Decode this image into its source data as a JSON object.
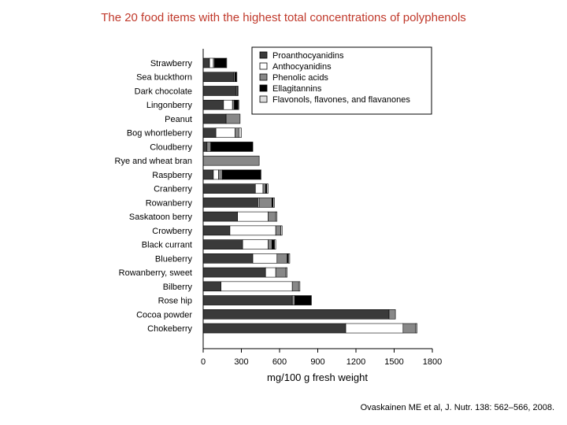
{
  "slide": {
    "title": "The 20 food items with the highest total concentrations of polyphenols",
    "citation": "Ovaskainen ME et al,  J. Nutr. 138: 562–566, 2008."
  },
  "chart_data": {
    "type": "bar",
    "orientation": "horizontal",
    "stacked": true,
    "title": "",
    "xlabel": "mg/100 g fresh weight",
    "ylabel": "",
    "xlim": [
      0,
      1800
    ],
    "xticks": [
      0,
      300,
      600,
      900,
      1200,
      1500,
      1800
    ],
    "grid": false,
    "legend_position": "top-right",
    "categories": [
      "Strawberry",
      "Sea buckthorn",
      "Dark chocolate",
      "Lingonberry",
      "Peanut",
      "Bog whortleberry",
      "Cloudberry",
      "Rye and wheat bran",
      "Raspberry",
      "Cranberry",
      "Rowanberry",
      "Saskatoon berry",
      "Crowberry",
      "Black currant",
      "Blueberry",
      "Rowanberry, sweet",
      "Bilberry",
      "Rose hip",
      "Cocoa powder",
      "Chokeberry"
    ],
    "series": [
      {
        "name": "Proanthocyanidins",
        "color": "#3a3a3a",
        "values": [
          50,
          240,
          260,
          160,
          180,
          100,
          30,
          0,
          80,
          410,
          430,
          270,
          210,
          310,
          390,
          490,
          140,
          700,
          1460,
          1120
        ]
      },
      {
        "name": "Anthocyanidins",
        "color": "#ffffff",
        "values": [
          30,
          0,
          0,
          70,
          0,
          150,
          0,
          0,
          40,
          60,
          10,
          240,
          360,
          200,
          190,
          80,
          560,
          0,
          0,
          450
        ]
      },
      {
        "name": "Phenolic acids",
        "color": "#888888",
        "values": [
          10,
          10,
          10,
          15,
          110,
          30,
          30,
          440,
          30,
          20,
          100,
          60,
          40,
          30,
          80,
          80,
          50,
          20,
          50,
          100
        ]
      },
      {
        "name": "Ellagitannins",
        "color": "#000000",
        "values": [
          90,
          10,
          0,
          30,
          0,
          0,
          330,
          0,
          300,
          10,
          10,
          0,
          0,
          20,
          10,
          0,
          0,
          130,
          0,
          0
        ]
      },
      {
        "name": "Flavonols, flavones, and flavanones",
        "color": "#dddddd",
        "values": [
          5,
          5,
          5,
          5,
          0,
          20,
          0,
          0,
          5,
          10,
          10,
          10,
          10,
          10,
          10,
          10,
          10,
          0,
          0,
          10
        ]
      }
    ]
  }
}
